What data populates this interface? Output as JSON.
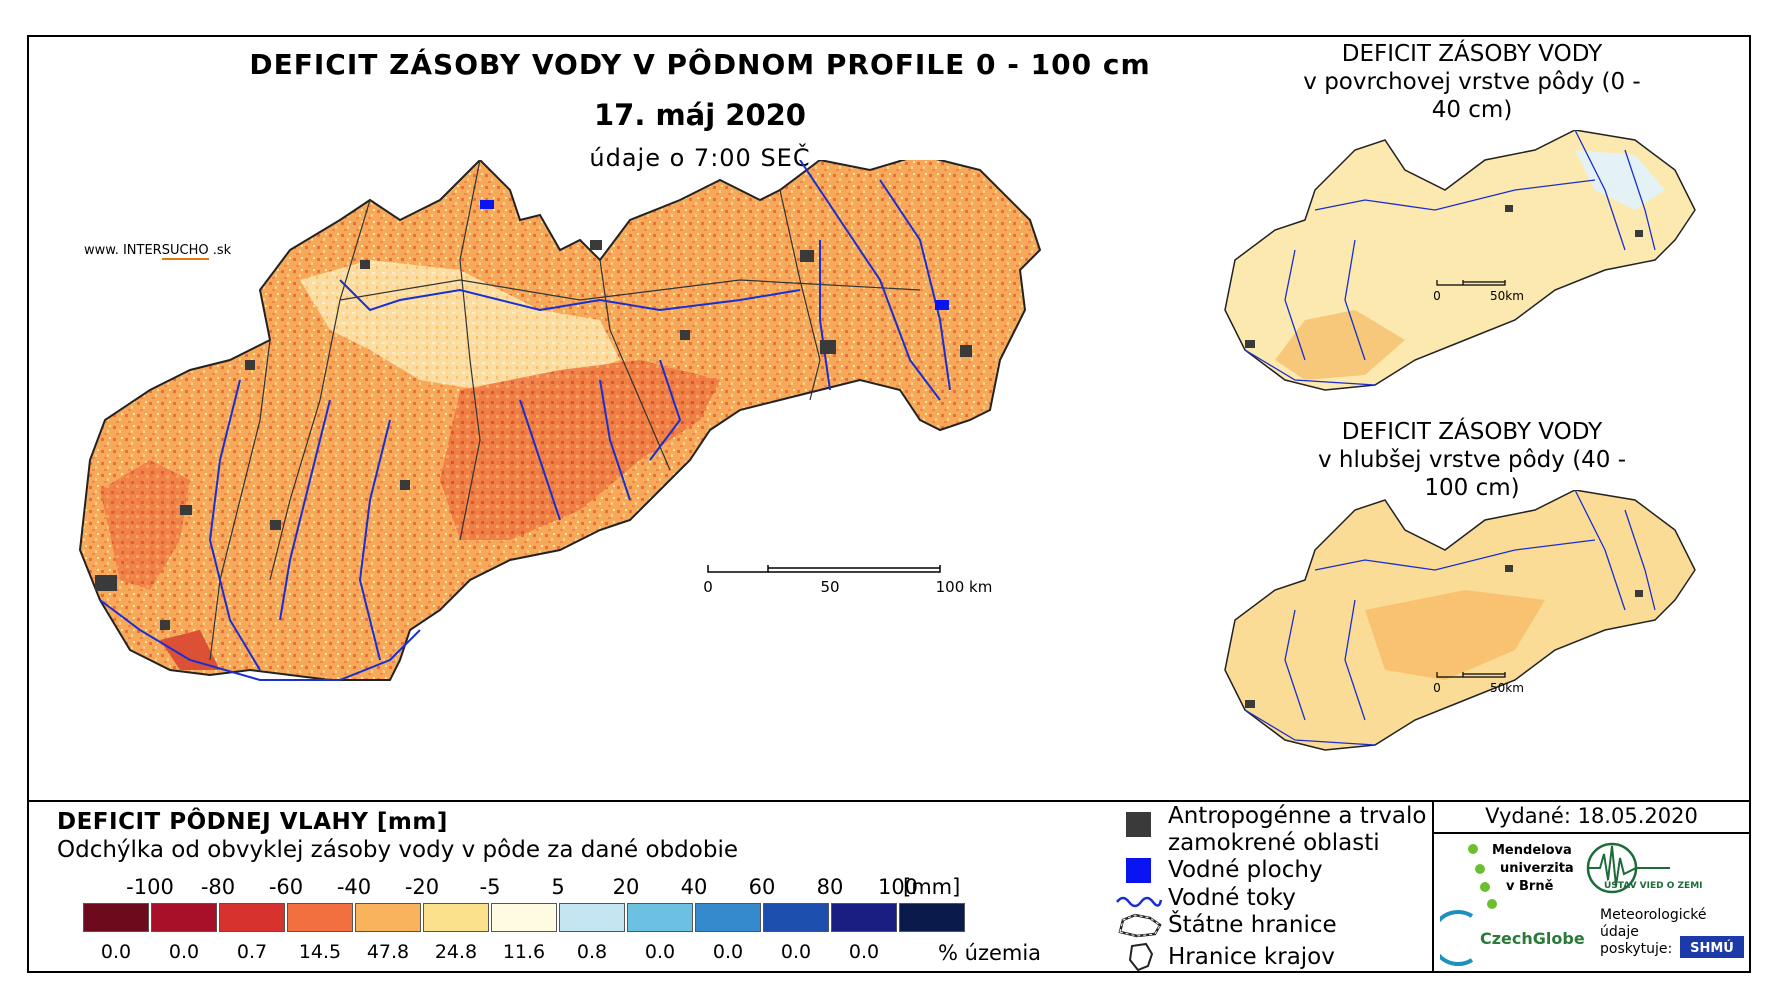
{
  "main": {
    "title": "DEFICIT ZÁSOBY VODY V PÔDNOM PROFILE 0 - 100 cm",
    "date": "17. máj 2020",
    "time": "údaje o 7:00 SEČ",
    "website_prefix": "www. INTER",
    "website_highlight": "SUCHO",
    "website_suffix": " .sk",
    "scale": {
      "labels": [
        "0",
        "50",
        "100 km"
      ]
    }
  },
  "map_top": {
    "title_line1": "DEFICIT ZÁSOBY VODY",
    "title_line2": "v povrchovej vrstve pôdy (0 - 40 cm)",
    "scale": {
      "labels": [
        "0",
        "50km"
      ]
    }
  },
  "map_bottom": {
    "title_line1": "DEFICIT ZÁSOBY VODY",
    "title_line2": "v hlubšej vrstve pôdy (40 - 100 cm)",
    "scale": {
      "labels": [
        "0",
        "50km"
      ]
    }
  },
  "legend": {
    "title": "DEFICIT PÔDNEJ VLAHY [mm]",
    "subtitle": "Odchýlka od obvyklej zásoby vody v pôde za dané obdobie",
    "ticks": [
      "-100",
      "-80",
      "-60",
      "-40",
      "-20",
      "-5",
      "5",
      "20",
      "40",
      "60",
      "80",
      "100"
    ],
    "unit": "[mm]",
    "classes": [
      {
        "color": "#6d0a1c",
        "percent": "0.0"
      },
      {
        "color": "#a8102a",
        "percent": "0.0"
      },
      {
        "color": "#d8322e",
        "percent": "0.7"
      },
      {
        "color": "#f2703f",
        "percent": "14.5"
      },
      {
        "color": "#f9b35c",
        "percent": "47.8"
      },
      {
        "color": "#fce18c",
        "percent": "24.8"
      },
      {
        "color": "#fefbe2",
        "percent": "11.6"
      },
      {
        "color": "#c4e6f2",
        "percent": "0.8"
      },
      {
        "color": "#6cc1e2",
        "percent": "0.0"
      },
      {
        "color": "#3589cd",
        "percent": "0.0"
      },
      {
        "color": "#1c4fae",
        "percent": "0.0"
      },
      {
        "color": "#1a1e82",
        "percent": "0.0"
      },
      {
        "color": "#0a1a4a",
        "percent": ""
      }
    ],
    "percent_label": "% územia"
  },
  "map_legend": [
    {
      "icon": "dark-square",
      "text": "Antropogénne a trvalo\nzamokrené oblasti"
    },
    {
      "icon": "blue-square",
      "text": "Vodné plochy"
    },
    {
      "icon": "river-line",
      "text": "Vodné toky"
    },
    {
      "icon": "state-border",
      "text": "Štátne hranice"
    },
    {
      "icon": "region-border",
      "text": "Hranice krajov"
    }
  ],
  "credits": {
    "issued": "Vydané: 18.05.2020",
    "mendel": [
      "Mendelova",
      "univerzita",
      "v Brně"
    ],
    "czechglobe": "CzechGlobe",
    "ustav": "ÚSTAV VIED O ZEMI",
    "met_label": [
      "Meteorologické",
      "údaje",
      "poskytuje:"
    ],
    "shmu": "SHMÚ"
  },
  "colors": {
    "river": "#1a2fd0",
    "urban": "#3a3a3a",
    "border": "#222222"
  }
}
